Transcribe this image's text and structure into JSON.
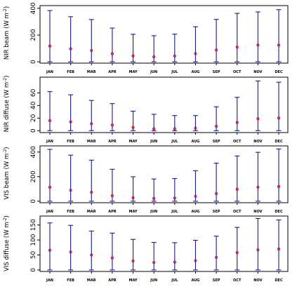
{
  "colors": {
    "range": "#1a1a8c",
    "mean": "#cc0033",
    "axis": "#000000"
  },
  "chart_data": [
    {
      "type": "errorbar",
      "ylabel_main": "NIR beam (W m",
      "ylabel_sup": "-2",
      "ylabel_close": ")",
      "ylim": [
        -10,
        420
      ],
      "yticks": [
        0,
        200,
        400
      ],
      "categories": [
        "JAN",
        "FEB",
        "MAR",
        "APR",
        "MAY",
        "JUN",
        "JUL",
        "AUG",
        "SEP",
        "OCT",
        "NOV",
        "DEC"
      ],
      "max": [
        383,
        337,
        316,
        252,
        206,
        195,
        207,
        262,
        317,
        362,
        373,
        390
      ],
      "mean": [
        118,
        97,
        84,
        60,
        44,
        37,
        43,
        61,
        88,
        110,
        125,
        124
      ],
      "min": [
        0,
        0,
        0,
        0,
        0,
        0,
        0,
        0,
        0,
        0,
        0,
        0
      ]
    },
    {
      "type": "errorbar",
      "ylabel_main": "NIR diffuse (W m",
      "ylabel_sup": "-2",
      "ylabel_close": ")",
      "ylim": [
        -3,
        85
      ],
      "yticks": [
        0,
        20,
        40,
        60
      ],
      "categories": [
        "JAN",
        "FEB",
        "MAR",
        "APR",
        "MAY",
        "JUN",
        "JUL",
        "AUG",
        "SEP",
        "OCT",
        "NOV",
        "DEC"
      ],
      "max": [
        62,
        57,
        48,
        43,
        31,
        26,
        24,
        24,
        38,
        53,
        79,
        77
      ],
      "mean": [
        16,
        14,
        11,
        9,
        5,
        3,
        3,
        4,
        7,
        13,
        19,
        20
      ],
      "min": [
        0,
        0,
        0,
        0,
        0,
        0,
        0,
        0,
        0,
        0,
        0,
        0
      ]
    },
    {
      "type": "errorbar",
      "ylabel_main": "VIS beam (W m",
      "ylabel_sup": "-2",
      "ylabel_close": ")",
      "ylim": [
        -12,
        450
      ],
      "yticks": [
        0,
        200,
        400
      ],
      "categories": [
        "JAN",
        "FEB",
        "MAR",
        "APR",
        "MAY",
        "JUN",
        "JUL",
        "AUG",
        "SEP",
        "OCT",
        "NOV",
        "DEC"
      ],
      "max": [
        422,
        375,
        334,
        260,
        199,
        181,
        184,
        248,
        310,
        368,
        398,
        425
      ],
      "mean": [
        114,
        89,
        73,
        45,
        28,
        22,
        25,
        40,
        62,
        97,
        114,
        120
      ],
      "min": [
        0,
        0,
        0,
        0,
        0,
        0,
        0,
        0,
        0,
        0,
        0,
        0
      ]
    },
    {
      "type": "errorbar",
      "ylabel_main": "VIS diffuse (W m",
      "ylabel_sup": "-2",
      "ylabel_close": ")",
      "ylim": [
        -5,
        180
      ],
      "yticks": [
        0,
        50,
        100,
        150
      ],
      "categories": [
        "JAN",
        "FEB",
        "MAR",
        "APR",
        "MAY",
        "JUN",
        "JUL",
        "AUG",
        "SEP",
        "OCT",
        "NOV",
        "DEC"
      ],
      "max": [
        157,
        149,
        130,
        123,
        102,
        92,
        91,
        99,
        113,
        142,
        172,
        167
      ],
      "mean": [
        66,
        60,
        50,
        40,
        30,
        25,
        26,
        31,
        42,
        58,
        67,
        70
      ],
      "min": [
        0,
        0,
        0,
        0,
        0,
        0,
        0,
        0,
        0,
        0,
        0,
        0
      ]
    }
  ]
}
